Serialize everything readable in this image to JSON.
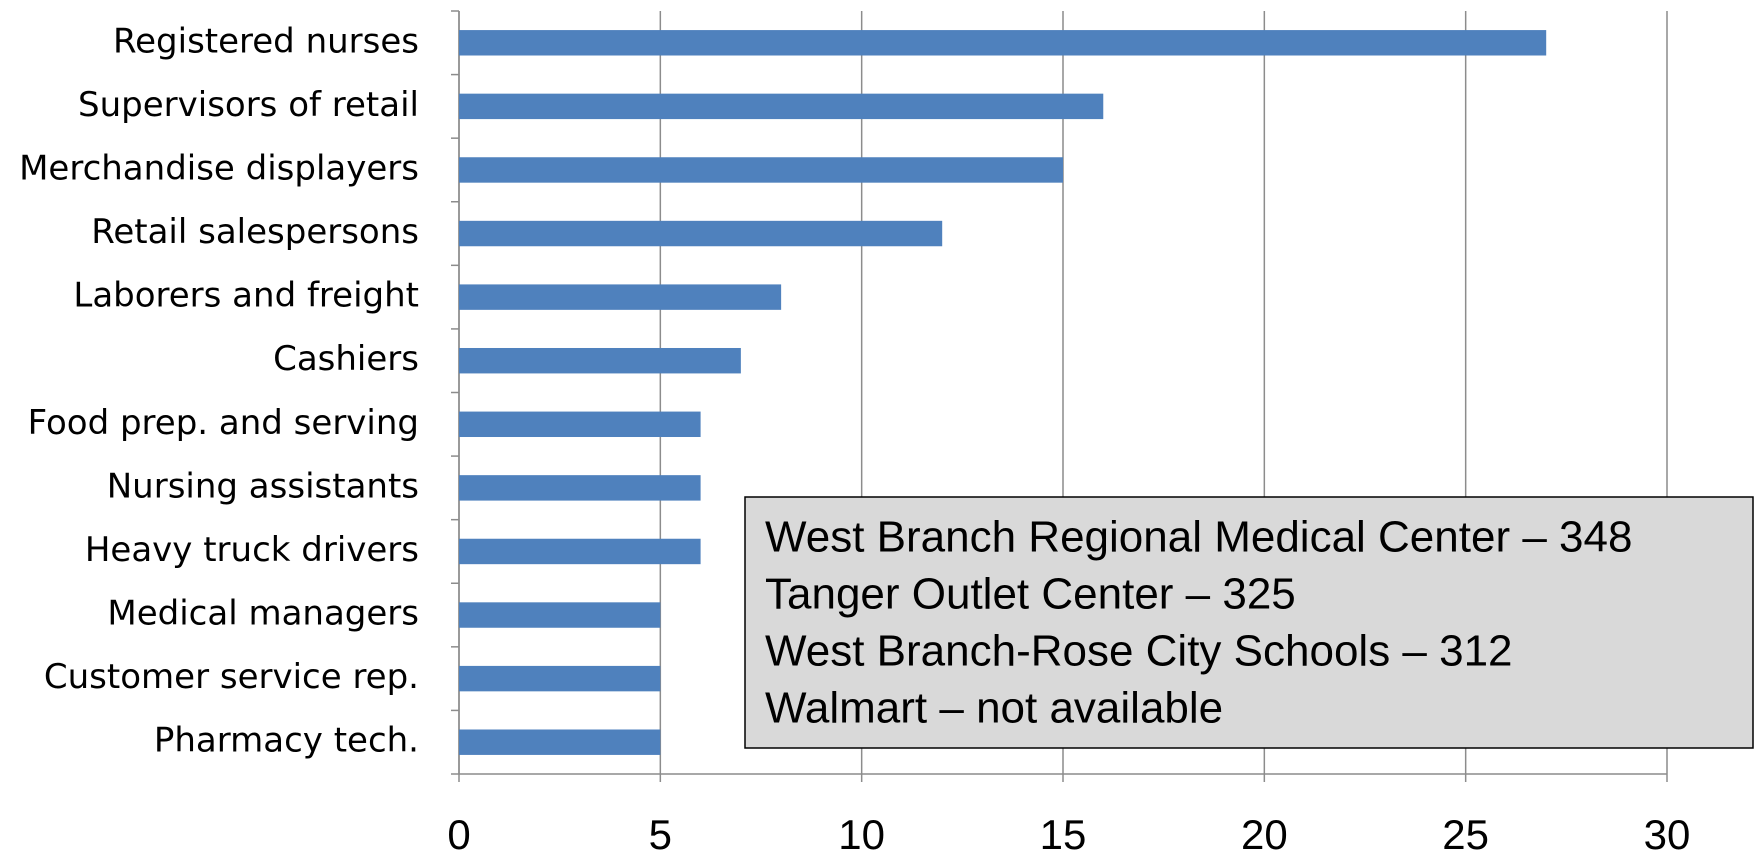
{
  "chart_data": {
    "type": "barh",
    "categories": [
      "Registered nurses",
      "Supervisors of retail",
      "Merchandise displayers",
      "Retail salespersons",
      "Laborers and freight",
      "Cashiers",
      "Food prep. and serving",
      "Nursing assistants",
      "Heavy truck drivers",
      "Medical managers",
      "Customer service rep.",
      "Pharmacy tech."
    ],
    "values": [
      27,
      16,
      15,
      12,
      8,
      7,
      6,
      6,
      6,
      5,
      5,
      5
    ],
    "color": "#4f81bd",
    "xlim": [
      0,
      30
    ],
    "xticks": [
      0,
      5,
      10,
      15,
      20,
      25,
      30
    ],
    "grid": true,
    "annotations": [
      "West Branch Regional Medical Center – 348",
      "Tanger Outlet Center – 325",
      "West Branch-Rose City Schools – 312",
      "Walmart – not available"
    ]
  }
}
